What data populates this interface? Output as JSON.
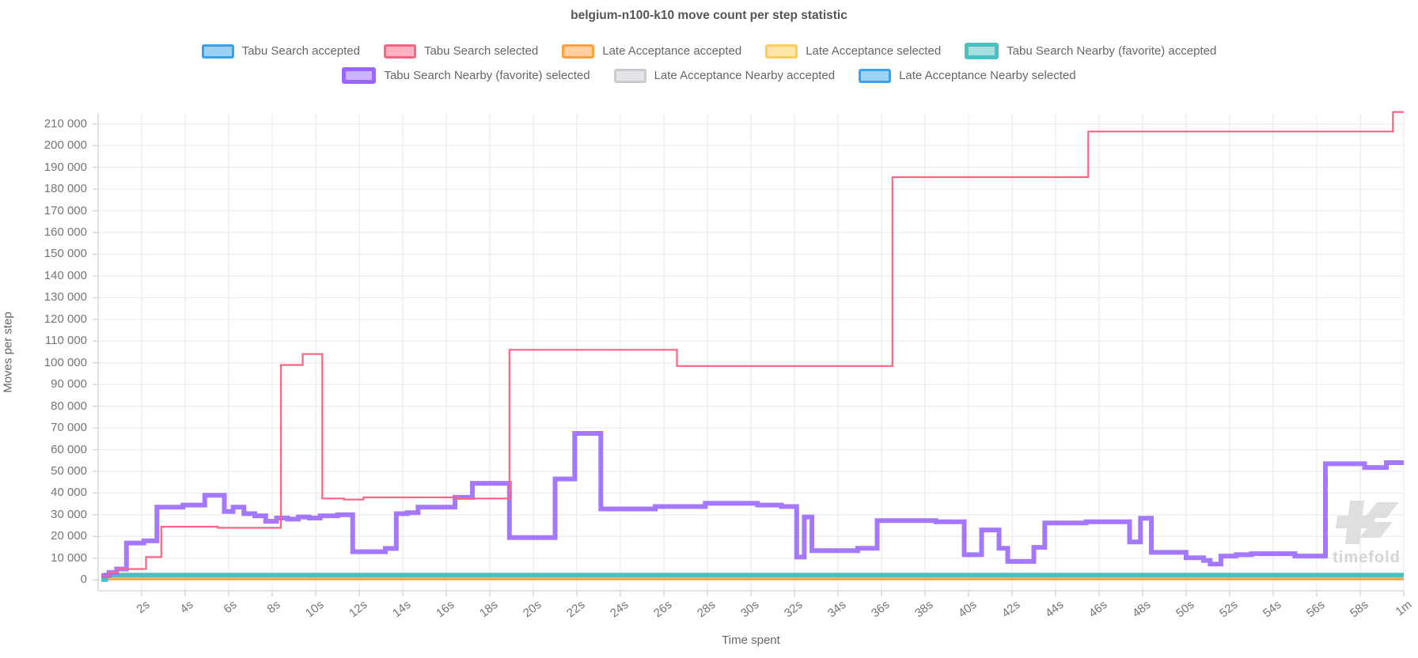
{
  "page": {
    "background": "#ffffff"
  },
  "watermark": {
    "text": "timefold"
  },
  "legend": {
    "rows": [
      [
        0,
        1,
        2,
        3,
        4
      ],
      [
        5,
        6,
        7
      ]
    ]
  },
  "chart_data": {
    "type": "line",
    "step": true,
    "title": "belgium-n100-k10 move count per step statistic",
    "xlabel": "Time spent",
    "ylabel": "Moves per step",
    "x_unit": "seconds",
    "xlim": [
      0,
      60
    ],
    "ylim": [
      -5000,
      215000
    ],
    "grid": true,
    "legend_position": "top",
    "x_tick_values": [
      2,
      4,
      6,
      8,
      10,
      12,
      14,
      16,
      18,
      20,
      22,
      24,
      26,
      28,
      30,
      32,
      34,
      36,
      38,
      40,
      42,
      44,
      46,
      48,
      50,
      52,
      54,
      56,
      58,
      60
    ],
    "x_tick_labels": [
      "2s",
      "4s",
      "6s",
      "8s",
      "10s",
      "12s",
      "14s",
      "16s",
      "18s",
      "20s",
      "22s",
      "24s",
      "26s",
      "28s",
      "30s",
      "32s",
      "34s",
      "36s",
      "38s",
      "40s",
      "42s",
      "44s",
      "46s",
      "48s",
      "50s",
      "52s",
      "54s",
      "56s",
      "58s",
      "1m"
    ],
    "y_tick_values": [
      0,
      10000,
      20000,
      30000,
      40000,
      50000,
      60000,
      70000,
      80000,
      90000,
      100000,
      110000,
      120000,
      130000,
      140000,
      150000,
      160000,
      170000,
      180000,
      190000,
      200000,
      210000
    ],
    "y_tick_labels": [
      "0",
      "10 000",
      "20 000",
      "30 000",
      "40 000",
      "50 000",
      "60 000",
      "70 000",
      "80 000",
      "90 000",
      "100 000",
      "110 000",
      "120 000",
      "130 000",
      "140 000",
      "150 000",
      "160 000",
      "170 000",
      "180 000",
      "190 000",
      "200 000",
      "210 000"
    ],
    "series": [
      {
        "name": "Tabu Search accepted",
        "color": "#36A2EB",
        "legend_fill": "#9BD1F5",
        "line_width": 2,
        "favorite": false,
        "points": [
          [
            0.2,
            1600
          ],
          [
            60,
            1600
          ]
        ]
      },
      {
        "name": "Tabu Search selected",
        "color": "#FF6384",
        "legend_fill": "#FFB1C1",
        "line_width": 2.2,
        "favorite": false,
        "points": [
          [
            0.15,
            2000
          ],
          [
            0.5,
            3500
          ],
          [
            0.9,
            5000
          ],
          [
            2.2,
            10500
          ],
          [
            2.9,
            24500
          ],
          [
            5.5,
            24000
          ],
          [
            8.4,
            99000
          ],
          [
            9.4,
            104000
          ],
          [
            10.3,
            37500
          ],
          [
            11.3,
            37000
          ],
          [
            12.2,
            38000
          ],
          [
            16.5,
            37500
          ],
          [
            18.9,
            106000
          ],
          [
            26.6,
            98500
          ],
          [
            36.5,
            185500
          ],
          [
            45.5,
            206500
          ],
          [
            59.5,
            215500
          ]
        ]
      },
      {
        "name": "Late Acceptance accepted",
        "color": "#FF9F40",
        "legend_fill": "#FFCFA0",
        "line_width": 2.4,
        "favorite": false,
        "points": [
          [
            0.2,
            300
          ],
          [
            60,
            300
          ]
        ]
      },
      {
        "name": "Late Acceptance selected",
        "color": "#FFCD56",
        "legend_fill": "#FFE6AB",
        "line_width": 2.4,
        "favorite": false,
        "points": [
          [
            0.2,
            650
          ],
          [
            60,
            650
          ]
        ]
      },
      {
        "name": "Tabu Search Nearby (favorite) accepted",
        "color": "#4BC0C0",
        "legend_fill": "#A5DFDF",
        "line_width": 6,
        "favorite": true,
        "points": [
          [
            0.15,
            200
          ],
          [
            0.35,
            2200
          ],
          [
            60,
            2200
          ]
        ]
      },
      {
        "name": "Tabu Search Nearby (favorite) selected",
        "color": "#9966FF",
        "legend_fill": "#CCB3FF",
        "line_width": 6,
        "favorite": true,
        "points": [
          [
            0.15,
            2000
          ],
          [
            0.5,
            3500
          ],
          [
            0.85,
            5000
          ],
          [
            1.3,
            17000
          ],
          [
            2.1,
            18000
          ],
          [
            2.7,
            33500
          ],
          [
            3.9,
            34500
          ],
          [
            4.9,
            39000
          ],
          [
            5.8,
            31500
          ],
          [
            6.2,
            33500
          ],
          [
            6.7,
            30500
          ],
          [
            7.2,
            29500
          ],
          [
            7.7,
            27000
          ],
          [
            8.2,
            28500
          ],
          [
            8.7,
            28000
          ],
          [
            9.2,
            29000
          ],
          [
            9.7,
            28500
          ],
          [
            10.2,
            29500
          ],
          [
            11.0,
            30000
          ],
          [
            11.7,
            13000
          ],
          [
            13.2,
            14500
          ],
          [
            13.7,
            30500
          ],
          [
            14.2,
            31000
          ],
          [
            14.7,
            33500
          ],
          [
            16.4,
            38000
          ],
          [
            17.2,
            44500
          ],
          [
            18.9,
            19500
          ],
          [
            21.0,
            46500
          ],
          [
            21.9,
            67500
          ],
          [
            23.1,
            32700
          ],
          [
            25.6,
            33800
          ],
          [
            27.9,
            35300
          ],
          [
            30.3,
            34500
          ],
          [
            31.4,
            33800
          ],
          [
            32.1,
            10500
          ],
          [
            32.45,
            29000
          ],
          [
            32.8,
            13500
          ],
          [
            34.9,
            14600
          ],
          [
            35.8,
            27300
          ],
          [
            38.5,
            26800
          ],
          [
            39.8,
            11600
          ],
          [
            40.6,
            23000
          ],
          [
            41.4,
            14600
          ],
          [
            41.8,
            8500
          ],
          [
            43.0,
            15000
          ],
          [
            43.5,
            26200
          ],
          [
            45.4,
            26800
          ],
          [
            47.4,
            17500
          ],
          [
            47.9,
            28400
          ],
          [
            48.4,
            12700
          ],
          [
            50.0,
            10200
          ],
          [
            50.8,
            9000
          ],
          [
            51.1,
            7300
          ],
          [
            51.6,
            11000
          ],
          [
            52.3,
            11600
          ],
          [
            53.0,
            12100
          ],
          [
            55.0,
            11000
          ],
          [
            56.4,
            53500
          ],
          [
            58.2,
            51800
          ],
          [
            59.2,
            54000
          ]
        ]
      },
      {
        "name": "Late Acceptance Nearby accepted",
        "color": "#C9CBCF",
        "legend_fill": "#E4E5E7",
        "line_width": 2,
        "favorite": false,
        "points": [
          [
            0.3,
            1500
          ],
          [
            60,
            1500
          ]
        ]
      },
      {
        "name": "Late Acceptance Nearby selected",
        "color": "#36A2EB",
        "legend_fill": "#9BD1F5",
        "line_width": 2,
        "favorite": false,
        "points": [
          [
            0.3,
            1900
          ],
          [
            60,
            1900
          ]
        ]
      }
    ],
    "draw_order": [
      6,
      7,
      0,
      3,
      2,
      4,
      5,
      1
    ]
  }
}
